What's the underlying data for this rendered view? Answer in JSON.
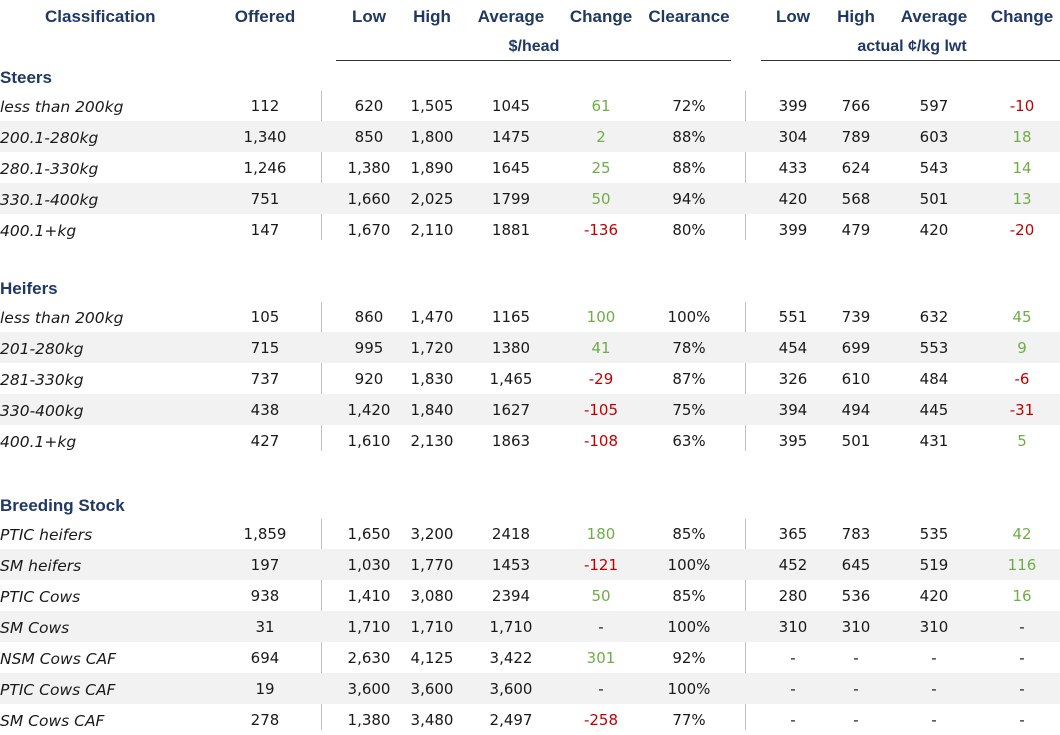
{
  "headers": {
    "classification": "Classification",
    "offered": "Offered",
    "low": "Low",
    "high": "High",
    "average": "Average",
    "change": "Change",
    "clearance": "Clearance",
    "low2": "Low",
    "high2": "High",
    "average2": "Average",
    "change2": "Change",
    "unit_head": "$/head",
    "unit_kg": "actual ¢/kg lwt"
  },
  "sections": [
    {
      "title": "Steers",
      "rows": [
        {
          "label": "less than 200kg",
          "offered": "112",
          "low": "620",
          "high": "1,505",
          "avg": "1045",
          "chg": "61",
          "chg_sign": "pos",
          "clear": "72%",
          "low2": "399",
          "high2": "766",
          "avg2": "597",
          "chg2": "-10",
          "chg2_sign": "neg"
        },
        {
          "label": "200.1-280kg",
          "offered": "1,340",
          "low": "850",
          "high": "1,800",
          "avg": "1475",
          "chg": "2",
          "chg_sign": "pos",
          "clear": "88%",
          "low2": "304",
          "high2": "789",
          "avg2": "603",
          "chg2": "18",
          "chg2_sign": "pos"
        },
        {
          "label": "280.1-330kg",
          "offered": "1,246",
          "low": "1,380",
          "high": "1,890",
          "avg": "1645",
          "chg": "25",
          "chg_sign": "pos",
          "clear": "88%",
          "low2": "433",
          "high2": "624",
          "avg2": "543",
          "chg2": "14",
          "chg2_sign": "pos"
        },
        {
          "label": "330.1-400kg",
          "offered": "751",
          "low": "1,660",
          "high": "2,025",
          "avg": "1799",
          "chg": "50",
          "chg_sign": "pos",
          "clear": "94%",
          "low2": "420",
          "high2": "568",
          "avg2": "501",
          "chg2": "13",
          "chg2_sign": "pos"
        },
        {
          "label": "400.1+kg",
          "offered": "147",
          "low": "1,670",
          "high": "2,110",
          "avg": "1881",
          "chg": "-136",
          "chg_sign": "neg",
          "clear": "80%",
          "low2": "399",
          "high2": "479",
          "avg2": "420",
          "chg2": "-20",
          "chg2_sign": "neg"
        }
      ]
    },
    {
      "title": "Heifers",
      "rows": [
        {
          "label": "less than 200kg",
          "offered": "105",
          "low": "860",
          "high": "1,470",
          "avg": "1165",
          "chg": "100",
          "chg_sign": "pos",
          "clear": "100%",
          "low2": "551",
          "high2": "739",
          "avg2": "632",
          "chg2": "45",
          "chg2_sign": "pos"
        },
        {
          "label": "201-280kg",
          "offered": "715",
          "low": "995",
          "high": "1,720",
          "avg": "1380",
          "chg": "41",
          "chg_sign": "pos",
          "clear": "78%",
          "low2": "454",
          "high2": "699",
          "avg2": "553",
          "chg2": "9",
          "chg2_sign": "pos"
        },
        {
          "label": "281-330kg",
          "offered": "737",
          "low": "920",
          "high": "1,830",
          "avg": "1,465",
          "chg": "-29",
          "chg_sign": "neg",
          "clear": "87%",
          "low2": "326",
          "high2": "610",
          "avg2": "484",
          "chg2": "-6",
          "chg2_sign": "neg"
        },
        {
          "label": "330-400kg",
          "offered": "438",
          "low": "1,420",
          "high": "1,840",
          "avg": "1627",
          "chg": "-105",
          "chg_sign": "neg",
          "clear": "75%",
          "low2": "394",
          "high2": "494",
          "avg2": "445",
          "chg2": "-31",
          "chg2_sign": "neg"
        },
        {
          "label": "400.1+kg",
          "offered": "427",
          "low": "1,610",
          "high": "2,130",
          "avg": "1863",
          "chg": "-108",
          "chg_sign": "neg",
          "clear": "63%",
          "low2": "395",
          "high2": "501",
          "avg2": "431",
          "chg2": "5",
          "chg2_sign": "pos"
        }
      ]
    },
    {
      "title": "Breeding Stock",
      "rows": [
        {
          "label": "PTIC heifers",
          "offered": "1,859",
          "low": "1,650",
          "high": "3,200",
          "avg": "2418",
          "chg": "180",
          "chg_sign": "pos",
          "clear": "85%",
          "low2": "365",
          "high2": "783",
          "avg2": "535",
          "chg2": "42",
          "chg2_sign": "pos"
        },
        {
          "label": "SM heifers",
          "offered": "197",
          "low": "1,030",
          "high": "1,770",
          "avg": "1453",
          "chg": "-121",
          "chg_sign": "neg",
          "clear": "100%",
          "low2": "452",
          "high2": "645",
          "avg2": "519",
          "chg2": "116",
          "chg2_sign": "pos"
        },
        {
          "label": "PTIC Cows",
          "offered": "938",
          "low": "1,410",
          "high": "3,080",
          "avg": "2394",
          "chg": "50",
          "chg_sign": "pos",
          "clear": "85%",
          "low2": "280",
          "high2": "536",
          "avg2": "420",
          "chg2": "16",
          "chg2_sign": "pos"
        },
        {
          "label": "SM Cows",
          "offered": "31",
          "low": "1,710",
          "high": "1,710",
          "avg": "1,710",
          "chg": "-",
          "chg_sign": "none",
          "clear": "100%",
          "low2": "310",
          "high2": "310",
          "avg2": "310",
          "chg2": "-",
          "chg2_sign": "none"
        },
        {
          "label": "NSM Cows CAF",
          "offered": "694",
          "low": "2,630",
          "high": "4,125",
          "avg": "3,422",
          "chg": "301",
          "chg_sign": "pos",
          "clear": "92%",
          "low2": "-",
          "high2": "-",
          "avg2": "-",
          "chg2": "-",
          "chg2_sign": "none"
        },
        {
          "label": "PTIC Cows CAF",
          "offered": "19",
          "low": "3,600",
          "high": "3,600",
          "avg": "3,600",
          "chg": "-",
          "chg_sign": "none",
          "clear": "100%",
          "low2": "-",
          "high2": "-",
          "avg2": "-",
          "chg2": "-",
          "chg2_sign": "none"
        },
        {
          "label": "SM Cows CAF",
          "offered": "278",
          "low": "1,380",
          "high": "3,480",
          "avg": "2,497",
          "chg": "-258",
          "chg_sign": "neg",
          "clear": "77%",
          "low2": "-",
          "high2": "-",
          "avg2": "-",
          "chg2": "-",
          "chg2_sign": "none"
        }
      ]
    }
  ],
  "colors": {
    "header": "#1f3864",
    "positive": "#70ad47",
    "negative": "#c00000",
    "row_shade": "#f2f2f2"
  }
}
